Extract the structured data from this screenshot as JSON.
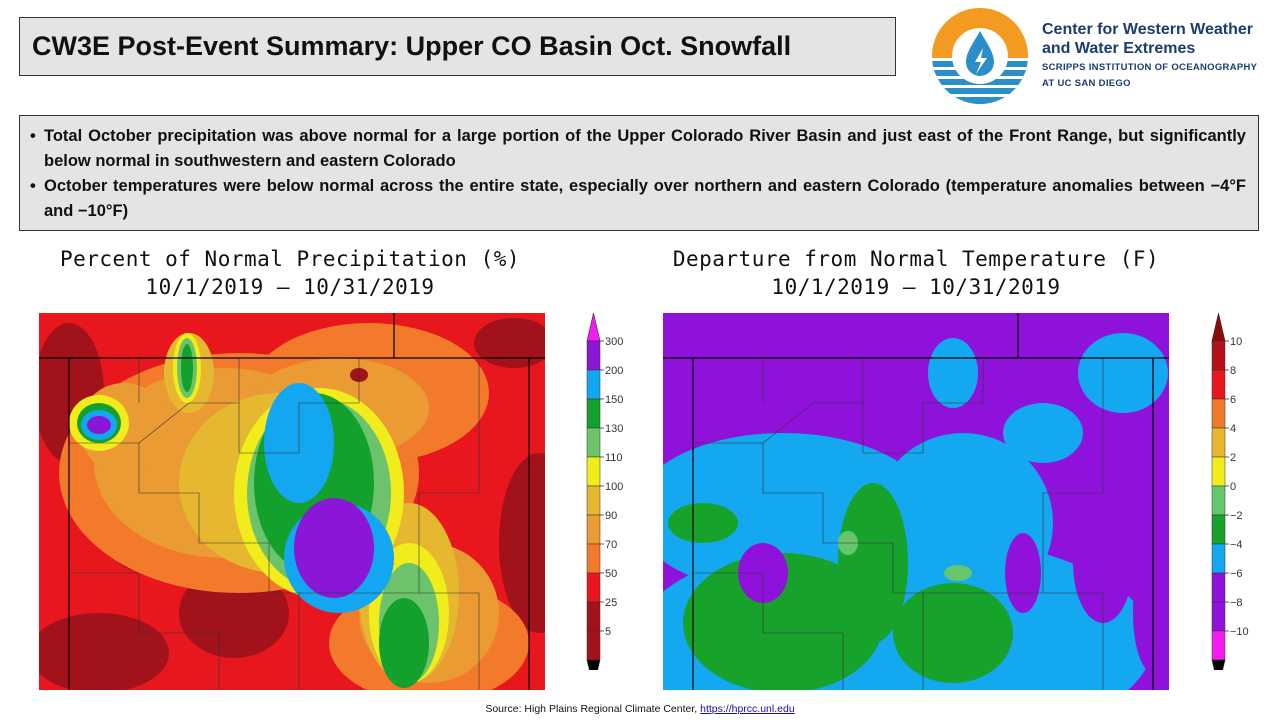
{
  "title": "CW3E Post-Event Summary: Upper CO Basin Oct. Snowfall",
  "org": {
    "name_line1": "Center for Western Weather",
    "name_line2": "and Water Extremes",
    "sub_line1": "SCRIPPS INSTITUTION OF OCEANOGRAPHY",
    "sub_line2": "AT UC SAN DIEGO"
  },
  "bullets": [
    "Total October precipitation was above normal for a large portion of the Upper Colorado River Basin and just east of the Front Range, but significantly below normal in southwestern and eastern Colorado",
    "October temperatures were below normal across the entire state, especially over northern and eastern Colorado (temperature anomalies between −4°F and −10°F)"
  ],
  "precip_map": {
    "title_line1": "Percent of Normal Precipitation (%)",
    "title_line2": "10/1/2019 – 10/31/2019",
    "legend_levels": [
      "5",
      "25",
      "50",
      "70",
      "90",
      "100",
      "110",
      "130",
      "150",
      "200",
      "300"
    ],
    "colors": {
      "darkred": "#a1121a",
      "red": "#e8161d",
      "orange": "#f27a2a",
      "lorange": "#eb9b34",
      "gold": "#e6b82f",
      "yellow": "#f1ed1c",
      "lgreen": "#6cc36b",
      "green": "#14a02c",
      "blue": "#14a7f1",
      "purple": "#8a16d6",
      "magenta": "#f21cf2"
    }
  },
  "temp_map": {
    "title_line1": "Departure from Normal Temperature (F)",
    "title_line2": "10/1/2019 – 10/31/2019",
    "legend_levels": [
      "10",
      "8",
      "6",
      "4",
      "2",
      "0",
      "−2",
      "−4",
      "−6",
      "−8",
      "−10"
    ],
    "colors": {
      "purple": "#8f12db",
      "blue": "#14a8f1",
      "green": "#17a22c",
      "lgreen": "#64c76e",
      "magenta": "#f21cf2"
    }
  },
  "source": {
    "text": "Source: High Plains Regional Climate Center, ",
    "link": "https://hprcc.unl.edu"
  }
}
